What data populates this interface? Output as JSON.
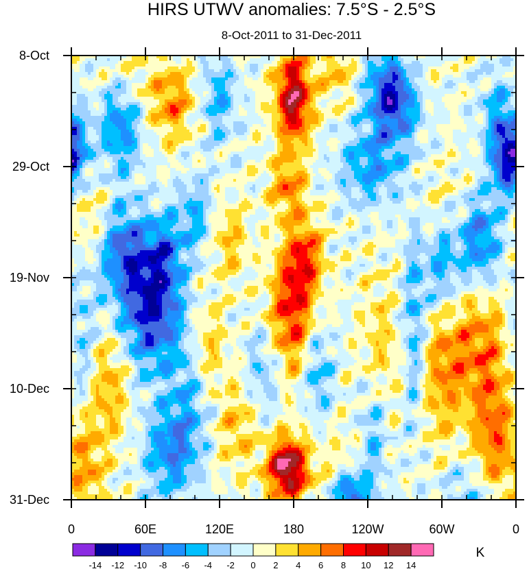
{
  "chart_data": {
    "type": "heatmap",
    "title": "HIRS UTWV anomalies: 7.5°S - 2.5°S",
    "subtitle": "8-Oct-2011 to 31-Dec-2011",
    "x_axis": {
      "ticks": [
        {
          "label": "0",
          "lon_east": 0
        },
        {
          "label": "60E",
          "lon_east": 60
        },
        {
          "label": "120E",
          "lon_east": 120
        },
        {
          "label": "180",
          "lon_east": 180
        },
        {
          "label": "120W",
          "lon_east": 240
        },
        {
          "label": "60W",
          "lon_east": 300
        },
        {
          "label": "0",
          "lon_east": 360
        }
      ],
      "range": [
        0,
        360
      ],
      "minor_step": 20
    },
    "y_axis": {
      "ticks": [
        {
          "label": "8-Oct",
          "day": 0
        },
        {
          "label": "29-Oct",
          "day": 21
        },
        {
          "label": "19-Nov",
          "day": 42
        },
        {
          "label": "10-Dec",
          "day": 63
        },
        {
          "label": "31-Dec",
          "day": 84
        }
      ],
      "range": [
        0,
        84
      ],
      "minor_step": 7
    },
    "colorbar": {
      "units": "K",
      "levels": [
        -14,
        -12,
        -10,
        -8,
        -6,
        -4,
        -2,
        0,
        2,
        4,
        6,
        8,
        10,
        12,
        14
      ],
      "labels": [
        "-14",
        "-12",
        "-10",
        "-8",
        "-6",
        "-4",
        "-2",
        "0",
        "2",
        "4",
        "6",
        "8",
        "10",
        "12",
        "14"
      ],
      "colors": [
        "#8b2be2",
        "#000096",
        "#0000cd",
        "#4169e1",
        "#1e90ff",
        "#00bfff",
        "#a0d2ff",
        "#d2f5ff",
        "#ffffc8",
        "#ffe132",
        "#ffaa00",
        "#ff6e00",
        "#ff0000",
        "#c80000",
        "#a02828",
        "#ff69b4"
      ]
    },
    "features": [
      {
        "lon": 180,
        "day": 8,
        "amp": 13,
        "slon": 10,
        "sday": 6
      },
      {
        "lon": 175,
        "day": 78,
        "amp": 15,
        "slon": 11,
        "sday": 4
      },
      {
        "lon": 178,
        "day": 48,
        "amp": 9,
        "slon": 12,
        "sday": 8
      },
      {
        "lon": 190,
        "day": 38,
        "amp": 7,
        "slon": 10,
        "sday": 5
      },
      {
        "lon": 175,
        "day": 25,
        "amp": 6,
        "slon": 10,
        "sday": 4
      },
      {
        "lon": 82,
        "day": 9,
        "amp": 6,
        "slon": 12,
        "sday": 5
      },
      {
        "lon": 30,
        "day": 62,
        "amp": 5,
        "slon": 12,
        "sday": 8
      },
      {
        "lon": 12,
        "day": 78,
        "amp": 5,
        "slon": 10,
        "sday": 7
      },
      {
        "lon": 45,
        "day": 5,
        "amp": 4,
        "slon": 15,
        "sday": 5
      },
      {
        "lon": 330,
        "day": 55,
        "amp": 6,
        "slon": 18,
        "sday": 8
      },
      {
        "lon": 342,
        "day": 72,
        "amp": 7,
        "slon": 12,
        "sday": 8
      },
      {
        "lon": 300,
        "day": 60,
        "amp": 5,
        "slon": 12,
        "sday": 10
      },
      {
        "lon": 248,
        "day": 58,
        "amp": 5,
        "slon": 10,
        "sday": 10
      },
      {
        "lon": 300,
        "day": 30,
        "amp": 4,
        "slon": 14,
        "sday": 6
      },
      {
        "lon": 215,
        "day": 3,
        "amp": 4,
        "slon": 10,
        "sday": 4
      },
      {
        "lon": 270,
        "day": 3,
        "amp": 3,
        "slon": 15,
        "sday": 4
      },
      {
        "lon": 128,
        "day": 35,
        "amp": 4,
        "slon": 10,
        "sday": 5
      },
      {
        "lon": 110,
        "day": 55,
        "amp": 4,
        "slon": 10,
        "sday": 6
      },
      {
        "lon": 135,
        "day": 70,
        "amp": 4,
        "slon": 12,
        "sday": 6
      },
      {
        "lon": 220,
        "day": 80,
        "amp": 3,
        "slon": 15,
        "sday": 6
      },
      {
        "lon": 15,
        "day": 30,
        "amp": 3,
        "slon": 12,
        "sday": 6
      },
      {
        "lon": 260,
        "day": 7,
        "amp": -13,
        "slon": 14,
        "sday": 6
      },
      {
        "lon": 242,
        "day": 21,
        "amp": -6,
        "slon": 18,
        "sday": 5
      },
      {
        "lon": 65,
        "day": 48,
        "amp": -11,
        "slon": 18,
        "sday": 8
      },
      {
        "lon": 42,
        "day": 37,
        "amp": -8,
        "slon": 14,
        "sday": 6
      },
      {
        "lon": 75,
        "day": 37,
        "amp": -6,
        "slon": 10,
        "sday": 5
      },
      {
        "lon": 40,
        "day": 12,
        "amp": -8,
        "slon": 12,
        "sday": 7
      },
      {
        "lon": 5,
        "day": 18,
        "amp": -7,
        "slon": 8,
        "sday": 5
      },
      {
        "lon": 225,
        "day": 84,
        "amp": -12,
        "slon": 10,
        "sday": 4
      },
      {
        "lon": 300,
        "day": 38,
        "amp": -7,
        "slon": 10,
        "sday": 8
      },
      {
        "lon": 330,
        "day": 35,
        "amp": -8,
        "slon": 12,
        "sday": 6
      },
      {
        "lon": 352,
        "day": 20,
        "amp": -9,
        "slon": 8,
        "sday": 5
      },
      {
        "lon": 345,
        "day": 12,
        "amp": -5,
        "slon": 10,
        "sday": 6
      },
      {
        "lon": 80,
        "day": 75,
        "amp": -7,
        "slon": 15,
        "sday": 6
      },
      {
        "lon": 8,
        "day": 55,
        "amp": -4,
        "slon": 10,
        "sday": 10
      },
      {
        "lon": 245,
        "day": 70,
        "amp": -6,
        "slon": 8,
        "sday": 10
      },
      {
        "lon": 278,
        "day": 50,
        "amp": -5,
        "slon": 6,
        "sday": 15
      },
      {
        "lon": 120,
        "day": 8,
        "amp": -5,
        "slon": 10,
        "sday": 6
      },
      {
        "lon": 100,
        "day": 30,
        "amp": -5,
        "slon": 10,
        "sday": 5
      },
      {
        "lon": 95,
        "day": 65,
        "amp": -4,
        "slon": 12,
        "sday": 8
      },
      {
        "lon": 155,
        "day": 60,
        "amp": -4,
        "slon": 10,
        "sday": 6
      },
      {
        "lon": 200,
        "day": 60,
        "amp": -5,
        "slon": 8,
        "sday": 6
      },
      {
        "lon": 320,
        "day": 85,
        "amp": -4,
        "slon": 15,
        "sday": 6
      }
    ]
  }
}
